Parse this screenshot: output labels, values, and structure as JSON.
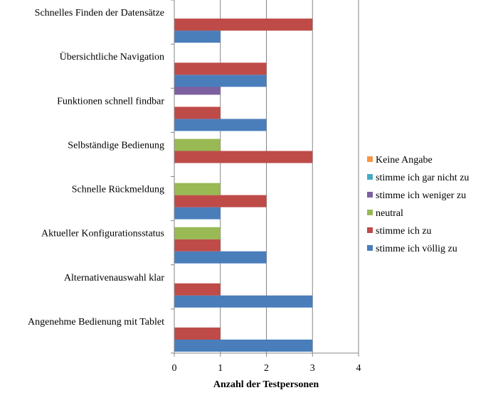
{
  "chart_data": {
    "type": "bar",
    "orientation": "horizontal",
    "categories": [
      "Angenehme Bedienung mit Tablet",
      "Alternativenauswahl klar",
      "Aktueller Konfigurationsstatus",
      "Schnelle Rückmeldung",
      "Selbständige Bedienung",
      "Funktionen schnell findbar",
      "Übersichtliche Navigation",
      "Schnelles Finden der Datensätze"
    ],
    "series": [
      {
        "name": "stimme ich völlig zu",
        "color": "#4a7ebb",
        "values": [
          3,
          3,
          2,
          1,
          0,
          2,
          2,
          1
        ]
      },
      {
        "name": "stimme ich zu",
        "color": "#be4b48",
        "values": [
          1,
          1,
          1,
          2,
          3,
          1,
          2,
          3
        ]
      },
      {
        "name": "neutral",
        "color": "#98b954",
        "values": [
          0,
          0,
          1,
          1,
          1,
          0,
          0,
          0
        ]
      },
      {
        "name": "stimme ich weniger zu",
        "color": "#7d60a0",
        "values": [
          0,
          0,
          0,
          0,
          0,
          1,
          0,
          0
        ]
      },
      {
        "name": "stimme ich gar nicht zu",
        "color": "#46aac5",
        "values": [
          0,
          0,
          0,
          0,
          0,
          0,
          0,
          0
        ]
      },
      {
        "name": "Keine Angabe",
        "color": "#f79646",
        "values": [
          0,
          0,
          0,
          0,
          0,
          0,
          0,
          0
        ]
      }
    ],
    "legend_order": [
      "Keine Angabe",
      "stimme ich gar nicht zu",
      "stimme ich weniger zu",
      "neutral",
      "stimme ich zu",
      "stimme ich völlig zu"
    ],
    "xlim": [
      0,
      4
    ],
    "xticks": [
      "0",
      "1",
      "2",
      "3",
      "4"
    ],
    "xlabel": "Anzahl der Testpersonen",
    "grid": true,
    "legend_position": "right"
  }
}
